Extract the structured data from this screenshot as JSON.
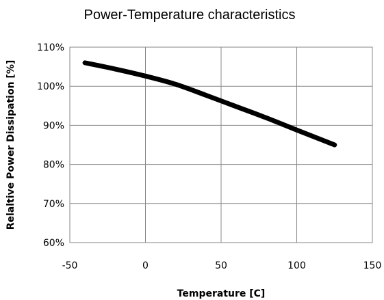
{
  "chart_data": {
    "type": "line",
    "title": "Power-Temperature characteristics",
    "xlabel": "Temperature [C]",
    "ylabel": "Relaltive  Power Dissipation [%]",
    "xlim": [
      -50,
      150
    ],
    "ylim": [
      60,
      110
    ],
    "x_ticks": [
      "-50",
      "0",
      "50",
      "100",
      "150"
    ],
    "y_ticks": [
      "60%",
      "70%",
      "80%",
      "90%",
      "100%",
      "110%"
    ],
    "grid": true,
    "legend": "none",
    "series": [
      {
        "x": [
          -40,
          -20,
          0,
          20,
          40,
          60,
          80,
          100,
          125
        ],
        "y": [
          106.0,
          104.4,
          102.6,
          100.5,
          97.7,
          94.8,
          91.9,
          88.8,
          85.0
        ]
      }
    ],
    "colors": {
      "line": "#000000",
      "grid": "#878787",
      "plot_border": "#878787"
    }
  }
}
